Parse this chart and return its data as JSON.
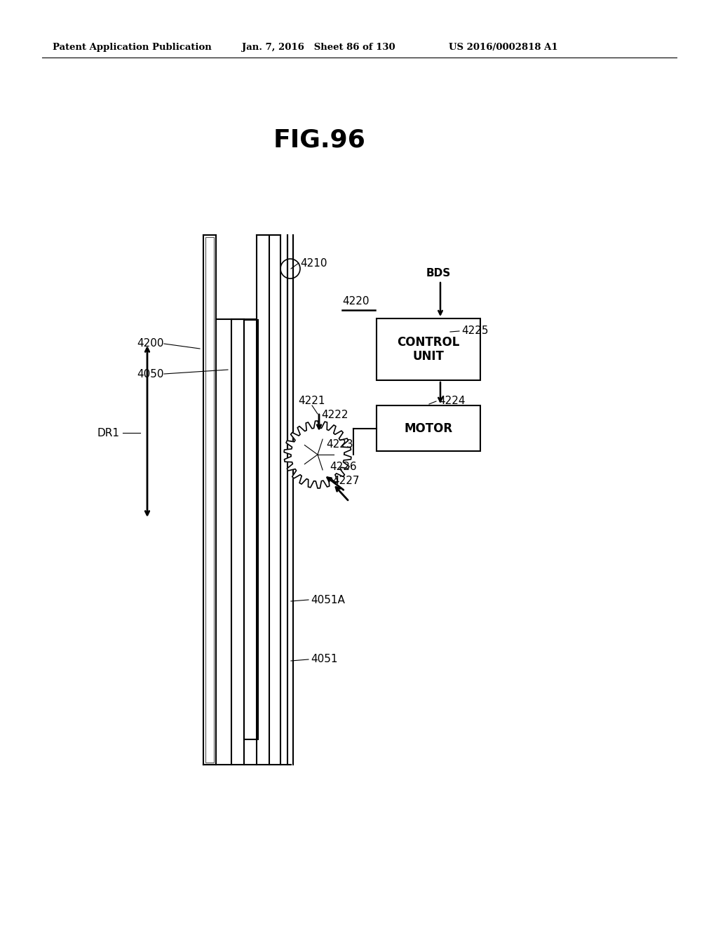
{
  "bg_color": "#ffffff",
  "header_left": "Patent Application Publication",
  "header_mid": "Jan. 7, 2016   Sheet 86 of 130",
  "header_right": "US 2016/0002818 A1",
  "fig_label": "FIG.96"
}
